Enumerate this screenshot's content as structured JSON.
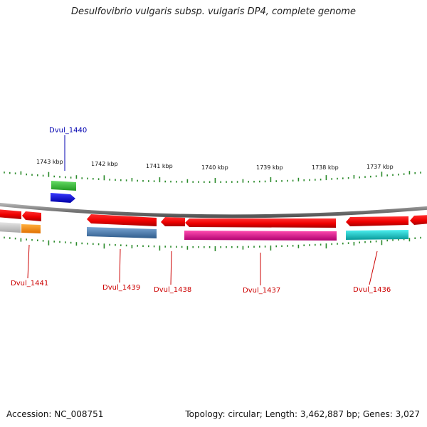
{
  "title": "Desulfovibrio vulgaris subsp. vulgaris DP4, complete genome",
  "accession": "Accession: NC_008751",
  "summary": "Topology: circular; Length: 3,462,887 bp; Genes: 3,027",
  "ruler": {
    "labels": [
      "1743 kbp",
      "1742 kbp",
      "1741 kbp",
      "1740 kbp",
      "1739 kbp",
      "1738 kbp",
      "1737 kbp"
    ]
  },
  "genes": [
    {
      "name": "Dvul_1440",
      "label_color": "#0000b0"
    },
    {
      "name": "Dvul_1441",
      "label_color": "#cc0000"
    },
    {
      "name": "Dvul_1439",
      "label_color": "#cc0000"
    },
    {
      "name": "Dvul_1438",
      "label_color": "#cc0000"
    },
    {
      "name": "Dvul_1437",
      "label_color": "#cc0000"
    },
    {
      "name": "Dvul_1436",
      "label_color": "#cc0000"
    }
  ],
  "colors": {
    "backbone": "#7a7a7a",
    "cds": "#ee0000",
    "tick": "#2a8a2a",
    "green_feature": "#33bb33",
    "blue_feature": "#1010e0",
    "orange_feature": "#ff8c00",
    "steel_feature": "#4a7aaa",
    "magenta_feature": "#e0148c",
    "cyan_feature": "#10c0c0"
  }
}
